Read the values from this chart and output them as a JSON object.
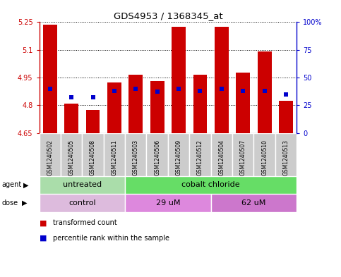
{
  "title": "GDS4953 / 1368345_at",
  "samples": [
    "GSM1240502",
    "GSM1240505",
    "GSM1240508",
    "GSM1240511",
    "GSM1240503",
    "GSM1240506",
    "GSM1240509",
    "GSM1240512",
    "GSM1240504",
    "GSM1240507",
    "GSM1240510",
    "GSM1240513"
  ],
  "transformed_count": [
    5.235,
    4.81,
    4.775,
    4.925,
    4.965,
    4.93,
    5.225,
    4.965,
    5.225,
    4.975,
    5.09,
    4.825
  ],
  "percentile_rank": [
    40,
    32,
    32,
    38,
    40,
    37,
    40,
    38,
    40,
    38,
    38,
    35
  ],
  "baseline": 4.65,
  "ylim_left": [
    4.65,
    5.25
  ],
  "ylim_right": [
    0,
    100
  ],
  "yticks_left": [
    4.65,
    4.8,
    4.95,
    5.1,
    5.25
  ],
  "yticks_right": [
    0,
    25,
    50,
    75,
    100
  ],
  "ytick_labels_left": [
    "4.65",
    "4.8",
    "4.95",
    "5.1",
    "5.25"
  ],
  "ytick_labels_right": [
    "0",
    "25",
    "50",
    "75",
    "100%"
  ],
  "bar_color": "#cc0000",
  "dot_color": "#0000cc",
  "sample_box_color": "#cccccc",
  "plot_bg": "#ffffff",
  "agent_groups": [
    {
      "label": "untreated",
      "start": 0,
      "end": 4,
      "color": "#aaddaa"
    },
    {
      "label": "cobalt chloride",
      "start": 4,
      "end": 12,
      "color": "#66dd66"
    }
  ],
  "dose_groups": [
    {
      "label": "control",
      "start": 0,
      "end": 4,
      "color": "#ddbbdd"
    },
    {
      "label": "29 uM",
      "start": 4,
      "end": 8,
      "color": "#dd88dd"
    },
    {
      "label": "62 uM",
      "start": 8,
      "end": 12,
      "color": "#cc77cc"
    }
  ],
  "legend_items": [
    {
      "color": "#cc0000",
      "label": "transformed count"
    },
    {
      "color": "#0000cc",
      "label": "percentile rank within the sample"
    }
  ],
  "bar_width": 0.65,
  "dot_size": 5
}
